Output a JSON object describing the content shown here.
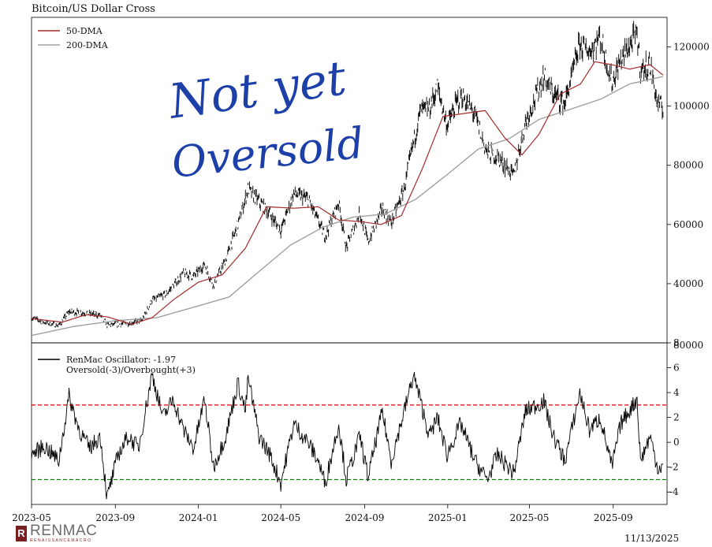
{
  "title": "Bitcoin/US Dollar Cross",
  "date": "11/13/2025",
  "annotation": {
    "line1": "Not yet",
    "line2": "Oversold"
  },
  "logo": {
    "main": "RENMAC",
    "sub": "RENAISSANCEMACRO",
    "mark": "R"
  },
  "colors": {
    "price": "#000000",
    "dma50": "#a52a2a",
    "dma200": "#a0a0a0",
    "oversold": "#008000",
    "overbought": "#e00000",
    "annotation": "#1d3fa8"
  },
  "chart_data": [
    {
      "type": "line",
      "panel": "price",
      "legend": [
        "50-DMA",
        "200-DMA"
      ],
      "ylim": [
        20000,
        130000
      ],
      "yticks": [
        40000,
        60000,
        80000,
        100000,
        120000
      ],
      "ytick_labels": [
        "40000",
        "60000",
        "80000",
        "100000",
        "120000"
      ],
      "xlim": [
        "2023-05",
        "2025-11"
      ],
      "series": [
        {
          "name": "Price",
          "values": [
            [
              "2023-05-01",
              28500
            ],
            [
              "2023-05-20",
              27000
            ],
            [
              "2023-06-10",
              25800
            ],
            [
              "2023-06-25",
              30500
            ],
            [
              "2023-07-15",
              30200
            ],
            [
              "2023-08-10",
              29300
            ],
            [
              "2023-08-20",
              26000
            ],
            [
              "2023-09-15",
              26500
            ],
            [
              "2023-10-10",
              27500
            ],
            [
              "2023-10-25",
              34500
            ],
            [
              "2023-11-15",
              36500
            ],
            [
              "2023-12-10",
              43500
            ],
            [
              "2023-12-25",
              42500
            ],
            [
              "2024-01-10",
              46500
            ],
            [
              "2024-01-23",
              39500
            ],
            [
              "2024-02-10",
              48000
            ],
            [
              "2024-02-28",
              60000
            ],
            [
              "2024-03-14",
              72000
            ],
            [
              "2024-03-25",
              69000
            ],
            [
              "2024-04-15",
              63500
            ],
            [
              "2024-05-01",
              58000
            ],
            [
              "2024-05-20",
              70500
            ],
            [
              "2024-06-10",
              68500
            ],
            [
              "2024-06-25",
              61000
            ],
            [
              "2024-07-05",
              56000
            ],
            [
              "2024-07-25",
              67500
            ],
            [
              "2024-08-05",
              52000
            ],
            [
              "2024-08-25",
              64000
            ],
            [
              "2024-09-06",
              54000
            ],
            [
              "2024-09-27",
              65500
            ],
            [
              "2024-10-10",
              60500
            ],
            [
              "2024-10-29",
              72000
            ],
            [
              "2024-11-12",
              88000
            ],
            [
              "2024-11-22",
              98500
            ],
            [
              "2024-12-05",
              99000
            ],
            [
              "2024-12-17",
              106500
            ],
            [
              "2024-12-31",
              93500
            ],
            [
              "2025-01-20",
              104000
            ],
            [
              "2025-02-10",
              97000
            ],
            [
              "2025-02-28",
              84000
            ],
            [
              "2025-03-15",
              83000
            ],
            [
              "2025-04-08",
              76500
            ],
            [
              "2025-04-25",
              94500
            ],
            [
              "2025-05-22",
              110000
            ],
            [
              "2025-06-05",
              104000
            ],
            [
              "2025-06-22",
              101000
            ],
            [
              "2025-07-14",
              121000
            ],
            [
              "2025-07-28",
              118500
            ],
            [
              "2025-08-13",
              123500
            ],
            [
              "2025-08-30",
              108000
            ],
            [
              "2025-09-12",
              115500
            ],
            [
              "2025-10-06",
              124500
            ],
            [
              "2025-10-11",
              112000
            ],
            [
              "2025-10-25",
              114000
            ],
            [
              "2025-11-05",
              101000
            ],
            [
              "2025-11-13",
              99000
            ]
          ]
        },
        {
          "name": "50-DMA",
          "values": [
            [
              "2023-05-01",
              28200
            ],
            [
              "2023-06-15",
              27000
            ],
            [
              "2023-07-20",
              29500
            ],
            [
              "2023-08-20",
              28800
            ],
            [
              "2023-09-25",
              26300
            ],
            [
              "2023-10-25",
              28500
            ],
            [
              "2023-11-25",
              34500
            ],
            [
              "2024-01-01",
              40500
            ],
            [
              "2024-02-05",
              43000
            ],
            [
              "2024-03-10",
              52000
            ],
            [
              "2024-04-10",
              66000
            ],
            [
              "2024-05-20",
              65500
            ],
            [
              "2024-06-25",
              66000
            ],
            [
              "2024-07-25",
              61500
            ],
            [
              "2024-08-25",
              61000
            ],
            [
              "2024-09-25",
              60000
            ],
            [
              "2024-10-25",
              63000
            ],
            [
              "2024-11-25",
              79000
            ],
            [
              "2024-12-25",
              96500
            ],
            [
              "2025-01-25",
              97500
            ],
            [
              "2025-02-25",
              98500
            ],
            [
              "2025-03-25",
              89500
            ],
            [
              "2025-04-20",
              83500
            ],
            [
              "2025-05-15",
              90500
            ],
            [
              "2025-06-15",
              104000
            ],
            [
              "2025-07-15",
              107500
            ],
            [
              "2025-08-05",
              115000
            ],
            [
              "2025-08-30",
              114000
            ],
            [
              "2025-09-25",
              112500
            ],
            [
              "2025-10-25",
              114000
            ],
            [
              "2025-11-13",
              110500
            ]
          ]
        },
        {
          "name": "200-DMA",
          "values": [
            [
              "2023-05-01",
              22500
            ],
            [
              "2023-07-01",
              25500
            ],
            [
              "2023-09-01",
              27500
            ],
            [
              "2023-11-01",
              28500
            ],
            [
              "2024-01-01",
              32500
            ],
            [
              "2024-02-15",
              35500
            ],
            [
              "2024-04-01",
              44500
            ],
            [
              "2024-05-15",
              53000
            ],
            [
              "2024-07-01",
              59000
            ],
            [
              "2024-08-15",
              62500
            ],
            [
              "2024-10-01",
              63500
            ],
            [
              "2024-11-15",
              68500
            ],
            [
              "2025-01-01",
              77000
            ],
            [
              "2025-02-15",
              85500
            ],
            [
              "2025-04-01",
              89000
            ],
            [
              "2025-05-15",
              95500
            ],
            [
              "2025-07-01",
              99000
            ],
            [
              "2025-08-15",
              102500
            ],
            [
              "2025-09-25",
              107500
            ],
            [
              "2025-11-13",
              110000
            ]
          ]
        }
      ]
    },
    {
      "type": "line",
      "panel": "oscillator",
      "legend": [
        "RenMac Oscillator: -1.97",
        "Oversold(-3)/Overbought(+3)"
      ],
      "ylim": [
        -5,
        8
      ],
      "yticks": [
        -4,
        -2,
        0,
        2,
        4,
        6,
        8
      ],
      "ytick_labels": [
        "-4",
        "-2",
        "0",
        "2",
        "4",
        "6",
        "8"
      ],
      "reference_lines": [
        3,
        -3
      ],
      "x": [
        "2023-05",
        "2023-09",
        "2024-01",
        "2024-05",
        "2024-09",
        "2025-01",
        "2025-05",
        "2025-09"
      ],
      "xtick_labels": [
        "2023-05",
        "2023-09",
        "2024-01",
        "2024-05",
        "2024-09",
        "2025-01",
        "2025-05",
        "2025-09"
      ],
      "series": [
        {
          "name": "RenMac Oscillator: -1.97",
          "values": [
            [
              "2023-05-01",
              -1.0
            ],
            [
              "2023-05-20",
              -0.3
            ],
            [
              "2023-06-10",
              -1.5
            ],
            [
              "2023-06-25",
              3.7
            ],
            [
              "2023-07-10",
              1.0
            ],
            [
              "2023-07-25",
              -0.5
            ],
            [
              "2023-08-10",
              0.5
            ],
            [
              "2023-08-20",
              -4.5
            ],
            [
              "2023-09-05",
              -1.0
            ],
            [
              "2023-09-20",
              0.5
            ],
            [
              "2023-10-05",
              -0.5
            ],
            [
              "2023-10-25",
              5.5
            ],
            [
              "2023-11-10",
              2.0
            ],
            [
              "2023-11-25",
              3.5
            ],
            [
              "2023-12-10",
              1.0
            ],
            [
              "2023-12-25",
              -0.5
            ],
            [
              "2024-01-10",
              3.5
            ],
            [
              "2024-01-23",
              -2.0
            ],
            [
              "2024-02-10",
              0.5
            ],
            [
              "2024-02-28",
              4.8
            ],
            [
              "2024-03-10",
              2.5
            ],
            [
              "2024-03-14",
              5.2
            ],
            [
              "2024-03-30",
              0.5
            ],
            [
              "2024-04-15",
              -1.0
            ],
            [
              "2024-05-01",
              -3.3
            ],
            [
              "2024-05-20",
              1.5
            ],
            [
              "2024-06-10",
              0.0
            ],
            [
              "2024-06-25",
              -1.5
            ],
            [
              "2024-07-05",
              -3.3
            ],
            [
              "2024-07-25",
              1.5
            ],
            [
              "2024-08-05",
              -3.0
            ],
            [
              "2024-08-25",
              0.5
            ],
            [
              "2024-09-06",
              -2.8
            ],
            [
              "2024-09-27",
              2.5
            ],
            [
              "2024-10-10",
              -1.5
            ],
            [
              "2024-10-29",
              2.5
            ],
            [
              "2024-11-12",
              5.4
            ],
            [
              "2024-11-22",
              3.3
            ],
            [
              "2024-12-05",
              0.5
            ],
            [
              "2024-12-17",
              2.0
            ],
            [
              "2024-12-31",
              -1.0
            ],
            [
              "2025-01-20",
              1.5
            ],
            [
              "2025-02-10",
              -1.5
            ],
            [
              "2025-02-28",
              -3.0
            ],
            [
              "2025-03-15",
              -1.0
            ],
            [
              "2025-04-08",
              -2.5
            ],
            [
              "2025-04-25",
              2.5
            ],
            [
              "2025-05-22",
              3.3
            ],
            [
              "2025-06-05",
              0.5
            ],
            [
              "2025-06-22",
              -1.5
            ],
            [
              "2025-07-14",
              4.0
            ],
            [
              "2025-07-28",
              1.0
            ],
            [
              "2025-08-13",
              2.0
            ],
            [
              "2025-08-30",
              -2.0
            ],
            [
              "2025-09-12",
              1.5
            ],
            [
              "2025-10-06",
              3.5
            ],
            [
              "2025-10-11",
              -1.5
            ],
            [
              "2025-10-25",
              0.5
            ],
            [
              "2025-11-05",
              -2.0
            ],
            [
              "2025-11-13",
              -1.97
            ]
          ]
        }
      ]
    }
  ]
}
